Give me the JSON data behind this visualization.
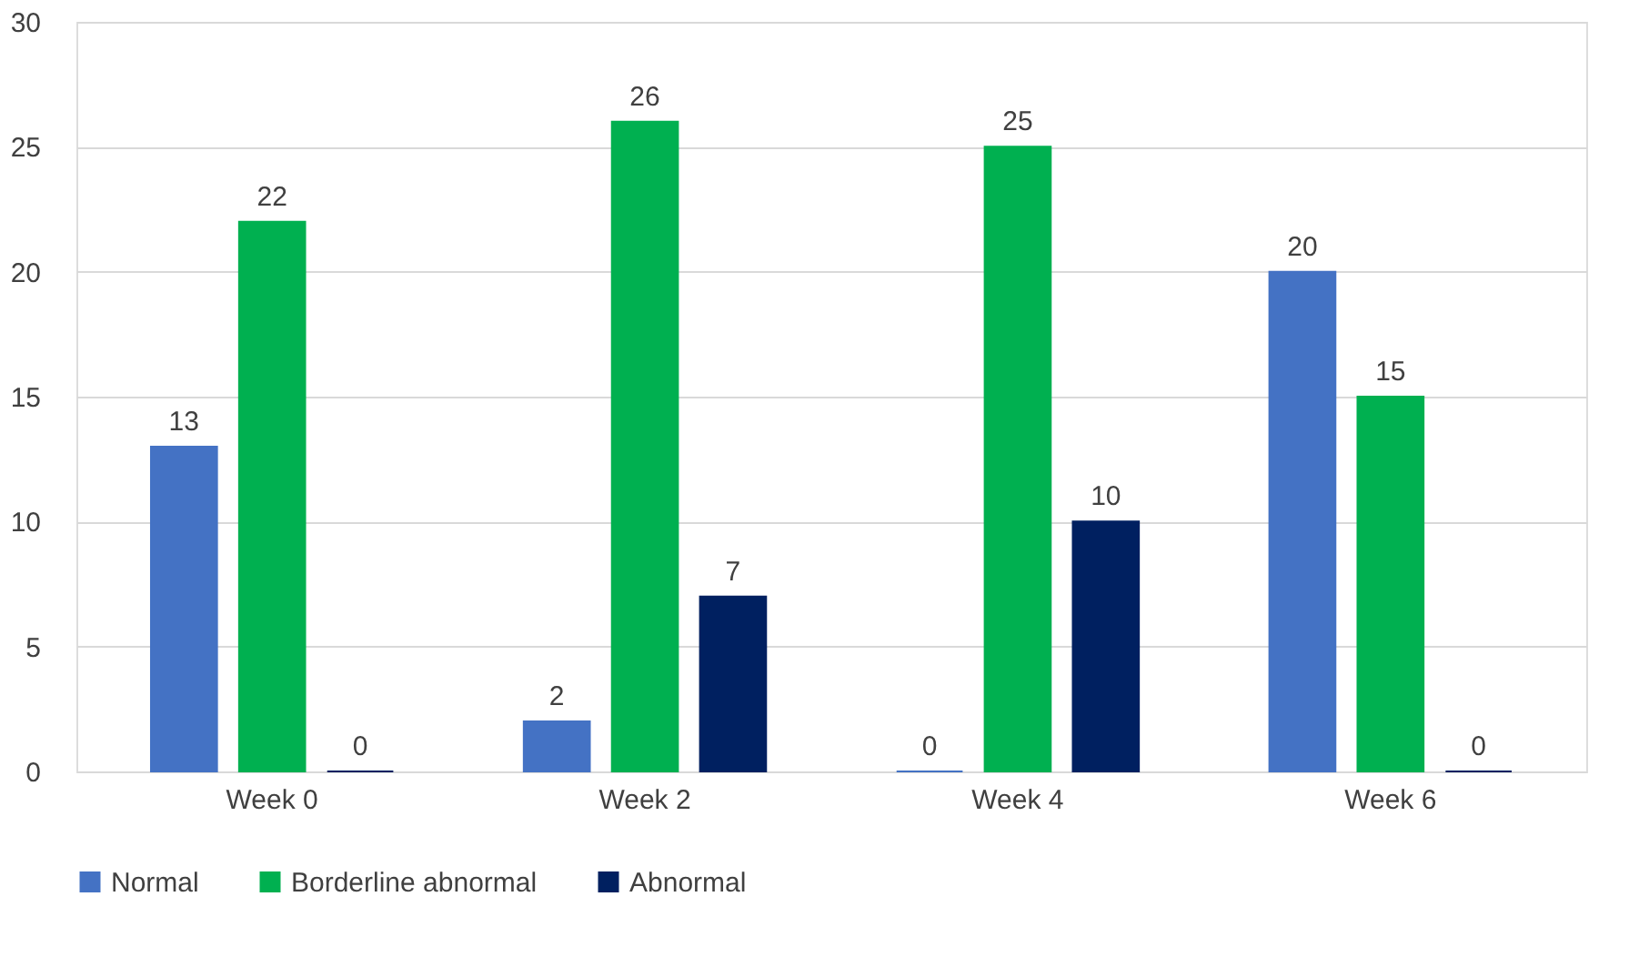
{
  "chart_data": {
    "type": "bar",
    "categories": [
      "Week 0",
      "Week 2",
      "Week 4",
      "Week 6"
    ],
    "series": [
      {
        "name": "Normal",
        "color": "#4472c4",
        "values": [
          13,
          2,
          0,
          20
        ]
      },
      {
        "name": "Borderline abnormal",
        "color": "#00b050",
        "values": [
          22,
          26,
          25,
          15
        ]
      },
      {
        "name": "Abnormal",
        "color": "#002060",
        "values": [
          0,
          7,
          10,
          0
        ]
      }
    ],
    "ylim": [
      0,
      30
    ],
    "yticks": [
      0,
      5,
      10,
      15,
      20,
      25,
      30
    ],
    "grid": "y",
    "legend": "bottom",
    "data_labels": true
  }
}
